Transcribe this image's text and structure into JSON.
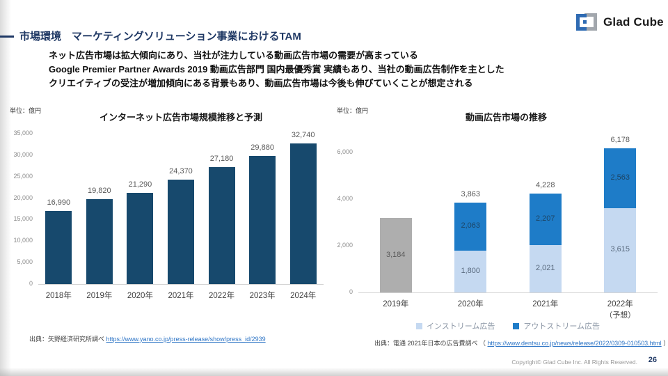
{
  "slide": {
    "header": {
      "title": "市場環境　マーケティングソリューション事業におけるTAM"
    },
    "logo": {
      "name": "Glad Cube",
      "mark_blue": "#2f6bb3",
      "mark_gray": "#a2a7ad"
    },
    "intro_lines": [
      "ネット広告市場は拡大傾向にあり、当社が注力している動画広告市場の需要が高まっている",
      "Google Premier Partner Awards 2019 動画広告部門 国内最優秀賞 実績もあり、当社の動画広告制作を主とした",
      "クリエイティブの受注が増加傾向にある背景もあり、動画広告市場は今後も伸びていくことが想定される"
    ],
    "sources": {
      "left": {
        "prefix": "出典：矢野経済研究所調べ ",
        "link": "https://www.yano.co.jp/press-release/show/press_id/2939",
        "suffix": ""
      },
      "right": {
        "prefix": "出典：電通 2021年日本の広告費調べ （ ",
        "link": "https://www.dentsu.co.jp/news/release/2022/0309-010503.html",
        "suffix": " ）"
      }
    },
    "footer": {
      "copyright": "Copyright© Glad Cube Inc. All Rights Reserved.",
      "page": "26"
    }
  },
  "chart_data": [
    {
      "type": "bar",
      "title": "インターネット広告市場規模推移と予測",
      "unit_label": "単位：億円",
      "categories": [
        "2018年",
        "2019年",
        "2020年",
        "2021年",
        "2022年",
        "2023年",
        "2024年"
      ],
      "values": [
        16990,
        19820,
        21290,
        24370,
        27180,
        29880,
        32740
      ],
      "ylim": [
        0,
        35000
      ],
      "ytick_interval": 5000,
      "bar_color": "#17496d",
      "grid": false,
      "legend_position": "none"
    },
    {
      "type": "stacked_bar",
      "title": "動画広告市場の推移",
      "unit_label": "単位：億円",
      "categories": [
        "2019年",
        "2020年",
        "2021年",
        "2022年"
      ],
      "category_notes": [
        "",
        "",
        "",
        "（予想）"
      ],
      "series": [
        {
          "name": "インストリーム広告",
          "color": "#c5d9f1",
          "label_color": "#596a7e",
          "values": [
            null,
            1800,
            2021,
            3615
          ]
        },
        {
          "name": "アウトストリーム広告",
          "color": "#1e7cc8",
          "label_color": "#1d4566",
          "values": [
            null,
            2063,
            2207,
            2563
          ]
        }
      ],
      "unsegmented_bars": [
        {
          "category_index": 0,
          "value": 3184,
          "color": "#aeaeae",
          "label_color": "#595959"
        }
      ],
      "totals": [
        3184,
        3863,
        4228,
        6178
      ],
      "ylim": [
        0,
        6000
      ],
      "ytick_interval": 2000,
      "grid": false,
      "legend_position": "bottom"
    }
  ]
}
